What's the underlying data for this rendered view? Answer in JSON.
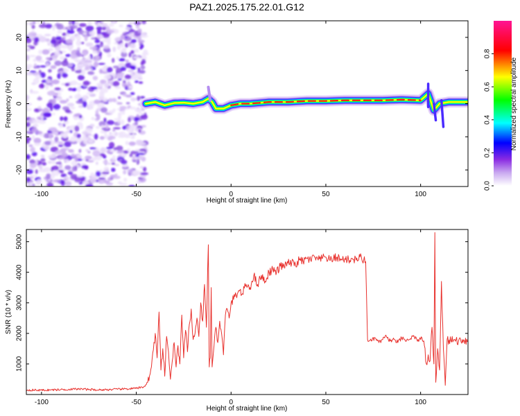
{
  "figure": {
    "title": "PAZ1.2025.175.22.01.G12"
  },
  "chart_data": [
    {
      "type": "heatmap",
      "xlabel": "Height of straight line (km)",
      "ylabel": "Frequency (Hz)",
      "xlim": [
        -108,
        125
      ],
      "ylim": [
        -25,
        25
      ],
      "xticks": [
        -100,
        -50,
        0,
        50,
        100
      ],
      "yticks": [
        -20,
        -10,
        0,
        10,
        20
      ],
      "grid": false,
      "noise_region_x": [
        -108,
        -45
      ],
      "ridge": [
        {
          "x": -45,
          "y": 0.0
        },
        {
          "x": -40,
          "y": 0.5
        },
        {
          "x": -35,
          "y": -0.5
        },
        {
          "x": -30,
          "y": 0.2
        },
        {
          "x": -25,
          "y": 0.3
        },
        {
          "x": -20,
          "y": 0.0
        },
        {
          "x": -15,
          "y": 0.5
        },
        {
          "x": -12,
          "y": 1.5
        },
        {
          "x": -10,
          "y": 0.5
        },
        {
          "x": -8,
          "y": -1.5
        },
        {
          "x": -4,
          "y": -1.5
        },
        {
          "x": 0,
          "y": -0.5
        },
        {
          "x": 5,
          "y": 0.0
        },
        {
          "x": 10,
          "y": 0.0
        },
        {
          "x": 20,
          "y": 0.5
        },
        {
          "x": 30,
          "y": 0.5
        },
        {
          "x": 40,
          "y": 0.8
        },
        {
          "x": 50,
          "y": 0.8
        },
        {
          "x": 60,
          "y": 1.0
        },
        {
          "x": 70,
          "y": 1.0
        },
        {
          "x": 80,
          "y": 1.0
        },
        {
          "x": 90,
          "y": 1.2
        },
        {
          "x": 100,
          "y": 1.0
        },
        {
          "x": 104,
          "y": 3.0
        },
        {
          "x": 107,
          "y": -2.0
        },
        {
          "x": 110,
          "y": 0.0
        },
        {
          "x": 115,
          "y": 0.5
        },
        {
          "x": 120,
          "y": 0.5
        },
        {
          "x": 125,
          "y": 0.5
        }
      ],
      "colorbar": {
        "label": "Normalized spectral amplitude",
        "range": [
          0.0,
          1.0
        ],
        "ticks": [
          0.0,
          0.2,
          0.4,
          0.6,
          0.8
        ],
        "colors": [
          "#ffffff",
          "#8a2be2",
          "#0000ff",
          "#00ffff",
          "#00ff00",
          "#ffff00",
          "#ff0000",
          "#ff1493"
        ]
      }
    },
    {
      "type": "line",
      "xlabel": "Height of straight line (km)",
      "ylabel": "SNR (10 * v/v)",
      "xlim": [
        -108,
        125
      ],
      "ylim": [
        0,
        5400
      ],
      "xticks": [
        -100,
        -50,
        0,
        50,
        100
      ],
      "yticks": [
        1000,
        2000,
        3000,
        4000,
        5000
      ],
      "grid": false,
      "color": "#e8302c",
      "series": [
        {
          "x": [
            -108,
            -100,
            -90,
            -80,
            -70,
            -60,
            -50,
            -46,
            -44,
            -42,
            -40,
            -39,
            -38,
            -37,
            -36,
            -35,
            -34,
            -33,
            -32,
            -31,
            -30,
            -29,
            -28,
            -27,
            -26,
            -25,
            -24,
            -23,
            -22,
            -21,
            -20,
            -19,
            -18,
            -17,
            -16,
            -15,
            -14,
            -13,
            -12,
            -11.5,
            -11,
            -10.5,
            -10,
            -9,
            -8,
            -7,
            -6,
            -5,
            -4,
            -3,
            -2,
            -1,
            0,
            2,
            4,
            6,
            8,
            10,
            12,
            14,
            16,
            18,
            20,
            22,
            24,
            26,
            28,
            30,
            32,
            34,
            36,
            38,
            40,
            42,
            44,
            46,
            48,
            50,
            52,
            54,
            56,
            58,
            60,
            62,
            64,
            66,
            68,
            70,
            71,
            72,
            74,
            76,
            78,
            80,
            82,
            84,
            86,
            88,
            90,
            92,
            94,
            96,
            98,
            100,
            102,
            103,
            104,
            105,
            106,
            107,
            107.5,
            108,
            109,
            110,
            111,
            112,
            113,
            114,
            116,
            118,
            120,
            122,
            125
          ],
          "y": [
            150,
            140,
            160,
            180,
            150,
            170,
            200,
            250,
            400,
            900,
            2000,
            1200,
            2700,
            800,
            1500,
            600,
            1900,
            1400,
            500,
            1100,
            1700,
            900,
            1600,
            1000,
            2600,
            1200,
            2100,
            1400,
            2300,
            2800,
            1800,
            2000,
            2500,
            1900,
            3000,
            2400,
            3600,
            2200,
            4900,
            900,
            1200,
            3500,
            900,
            1600,
            2200,
            1700,
            2400,
            2000,
            1300,
            2600,
            2800,
            2500,
            3000,
            3200,
            3400,
            3300,
            3600,
            3500,
            3900,
            3600,
            3900,
            3700,
            4000,
            4100,
            4000,
            4200,
            4200,
            4300,
            4300,
            4250,
            4400,
            4350,
            4450,
            4400,
            4500,
            4400,
            4450,
            4500,
            4400,
            4450,
            4500,
            4400,
            4450,
            4400,
            4450,
            4400,
            4500,
            4400,
            4350,
            1800,
            1750,
            1850,
            1700,
            1800,
            1900,
            1750,
            1800,
            1700,
            1850,
            1750,
            1800,
            1900,
            1800,
            1800,
            1600,
            1000,
            1300,
            1100,
            2200,
            1000,
            5300,
            400,
            1500,
            800,
            3700,
            1500,
            300,
            1800,
            1750,
            1800,
            1750,
            1800,
            1750
          ]
        }
      ]
    }
  ]
}
